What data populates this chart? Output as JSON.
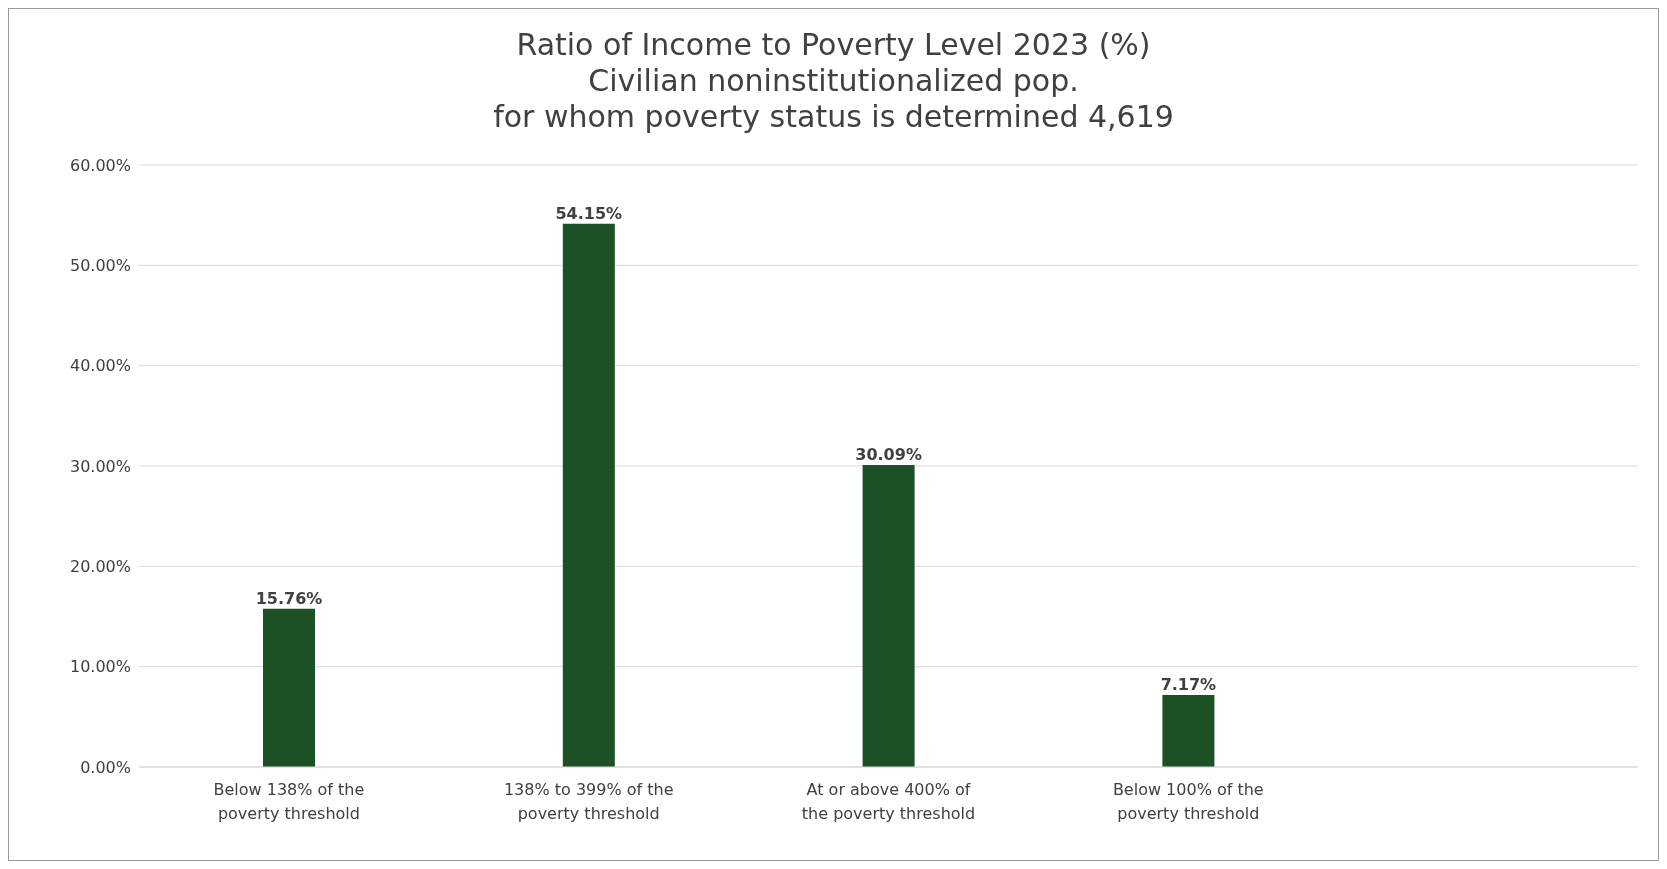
{
  "chart_data": {
    "type": "bar",
    "title": "Ratio of Income to Poverty Level 2023 (%)",
    "subtitle": "Civilian noninstitutionalized pop.\nfor whom poverty status is determined 4,619",
    "categories": [
      "Below 138% of the poverty threshold",
      "138% to 399% of the poverty threshold",
      "At or above 400% of the poverty threshold",
      "Below 100% of the poverty threshold",
      null
    ],
    "values": [
      15.76,
      54.15,
      30.09,
      7.17,
      null
    ],
    "color": "#1b5124",
    "value_labels": [
      "15.76%",
      "54.15%",
      "30.09%",
      "7.17%",
      null
    ],
    "ylim": [
      0,
      60
    ],
    "yticks": [
      {
        "value": 0,
        "label": "0.00%"
      },
      {
        "value": 10,
        "label": "10.00%"
      },
      {
        "value": 20,
        "label": "20.00%"
      },
      {
        "value": 30,
        "label": "30.00%"
      },
      {
        "value": 40,
        "label": "40.00%"
      },
      {
        "value": 50,
        "label": "50.00%"
      },
      {
        "value": 60,
        "label": "60.00%"
      }
    ],
    "grid": "y"
  }
}
